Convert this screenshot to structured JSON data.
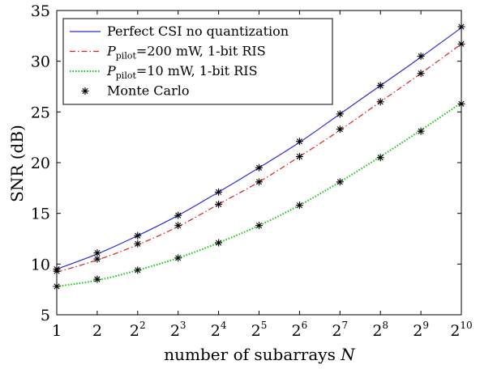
{
  "chart_data": {
    "type": "line",
    "xlabel_text": "number of subarrays ",
    "xlabel_var": "N",
    "ylabel": "SNR (dB)",
    "x": [
      1,
      2,
      4,
      8,
      16,
      32,
      64,
      128,
      256,
      512,
      1024
    ],
    "x_scale": "log2",
    "x_ticks": [
      {
        "base": "1",
        "exp": ""
      },
      {
        "base": "2",
        "exp": ""
      },
      {
        "base": "2",
        "exp": "2"
      },
      {
        "base": "2",
        "exp": "3"
      },
      {
        "base": "2",
        "exp": "4"
      },
      {
        "base": "2",
        "exp": "5"
      },
      {
        "base": "2",
        "exp": "6"
      },
      {
        "base": "2",
        "exp": "7"
      },
      {
        "base": "2",
        "exp": "8"
      },
      {
        "base": "2",
        "exp": "9"
      },
      {
        "base": "2",
        "exp": "10"
      }
    ],
    "ylim": [
      5,
      35
    ],
    "y_ticks": [
      "5",
      "10",
      "15",
      "20",
      "25",
      "30",
      "35"
    ],
    "grid": false,
    "legend_position": "top-left",
    "series": [
      {
        "legend_main": "Perfect CSI no quantization",
        "legend_sub": "",
        "legend_rest": "",
        "style": "solid",
        "color": "#2b2bd6",
        "values": [
          9.5,
          11.0,
          12.8,
          14.8,
          17.1,
          19.5,
          22.0,
          24.8,
          27.6,
          30.4,
          33.3
        ]
      },
      {
        "legend_main": "P",
        "legend_sub": "pilot",
        "legend_rest": "=200 mW, 1-bit RIS",
        "style": "dashdot",
        "color": "#e02020",
        "values": [
          9.2,
          10.4,
          11.9,
          13.7,
          15.9,
          18.1,
          20.6,
          23.2,
          26.0,
          28.8,
          31.7
        ]
      },
      {
        "legend_main": "P",
        "legend_sub": "pilot",
        "legend_rest": "=10 mW, 1-bit RIS",
        "style": "dotted",
        "color": "#10c810",
        "values": [
          7.8,
          8.4,
          9.4,
          10.6,
          12.1,
          13.8,
          15.8,
          18.1,
          20.6,
          23.2,
          25.9
        ]
      }
    ],
    "monte_carlo": {
      "legend_main": "Monte Carlo",
      "marker": "asterisk",
      "color": "#000000",
      "series": [
        [
          9.5,
          11.1,
          12.8,
          14.8,
          17.1,
          19.5,
          22.1,
          24.8,
          27.6,
          30.5,
          33.4
        ],
        [
          9.3,
          10.5,
          12.0,
          13.8,
          15.9,
          18.1,
          20.6,
          23.3,
          26.0,
          28.8,
          31.7
        ],
        [
          7.8,
          8.5,
          9.4,
          10.6,
          12.1,
          13.8,
          15.8,
          18.1,
          20.5,
          23.1,
          25.8
        ]
      ]
    }
  }
}
